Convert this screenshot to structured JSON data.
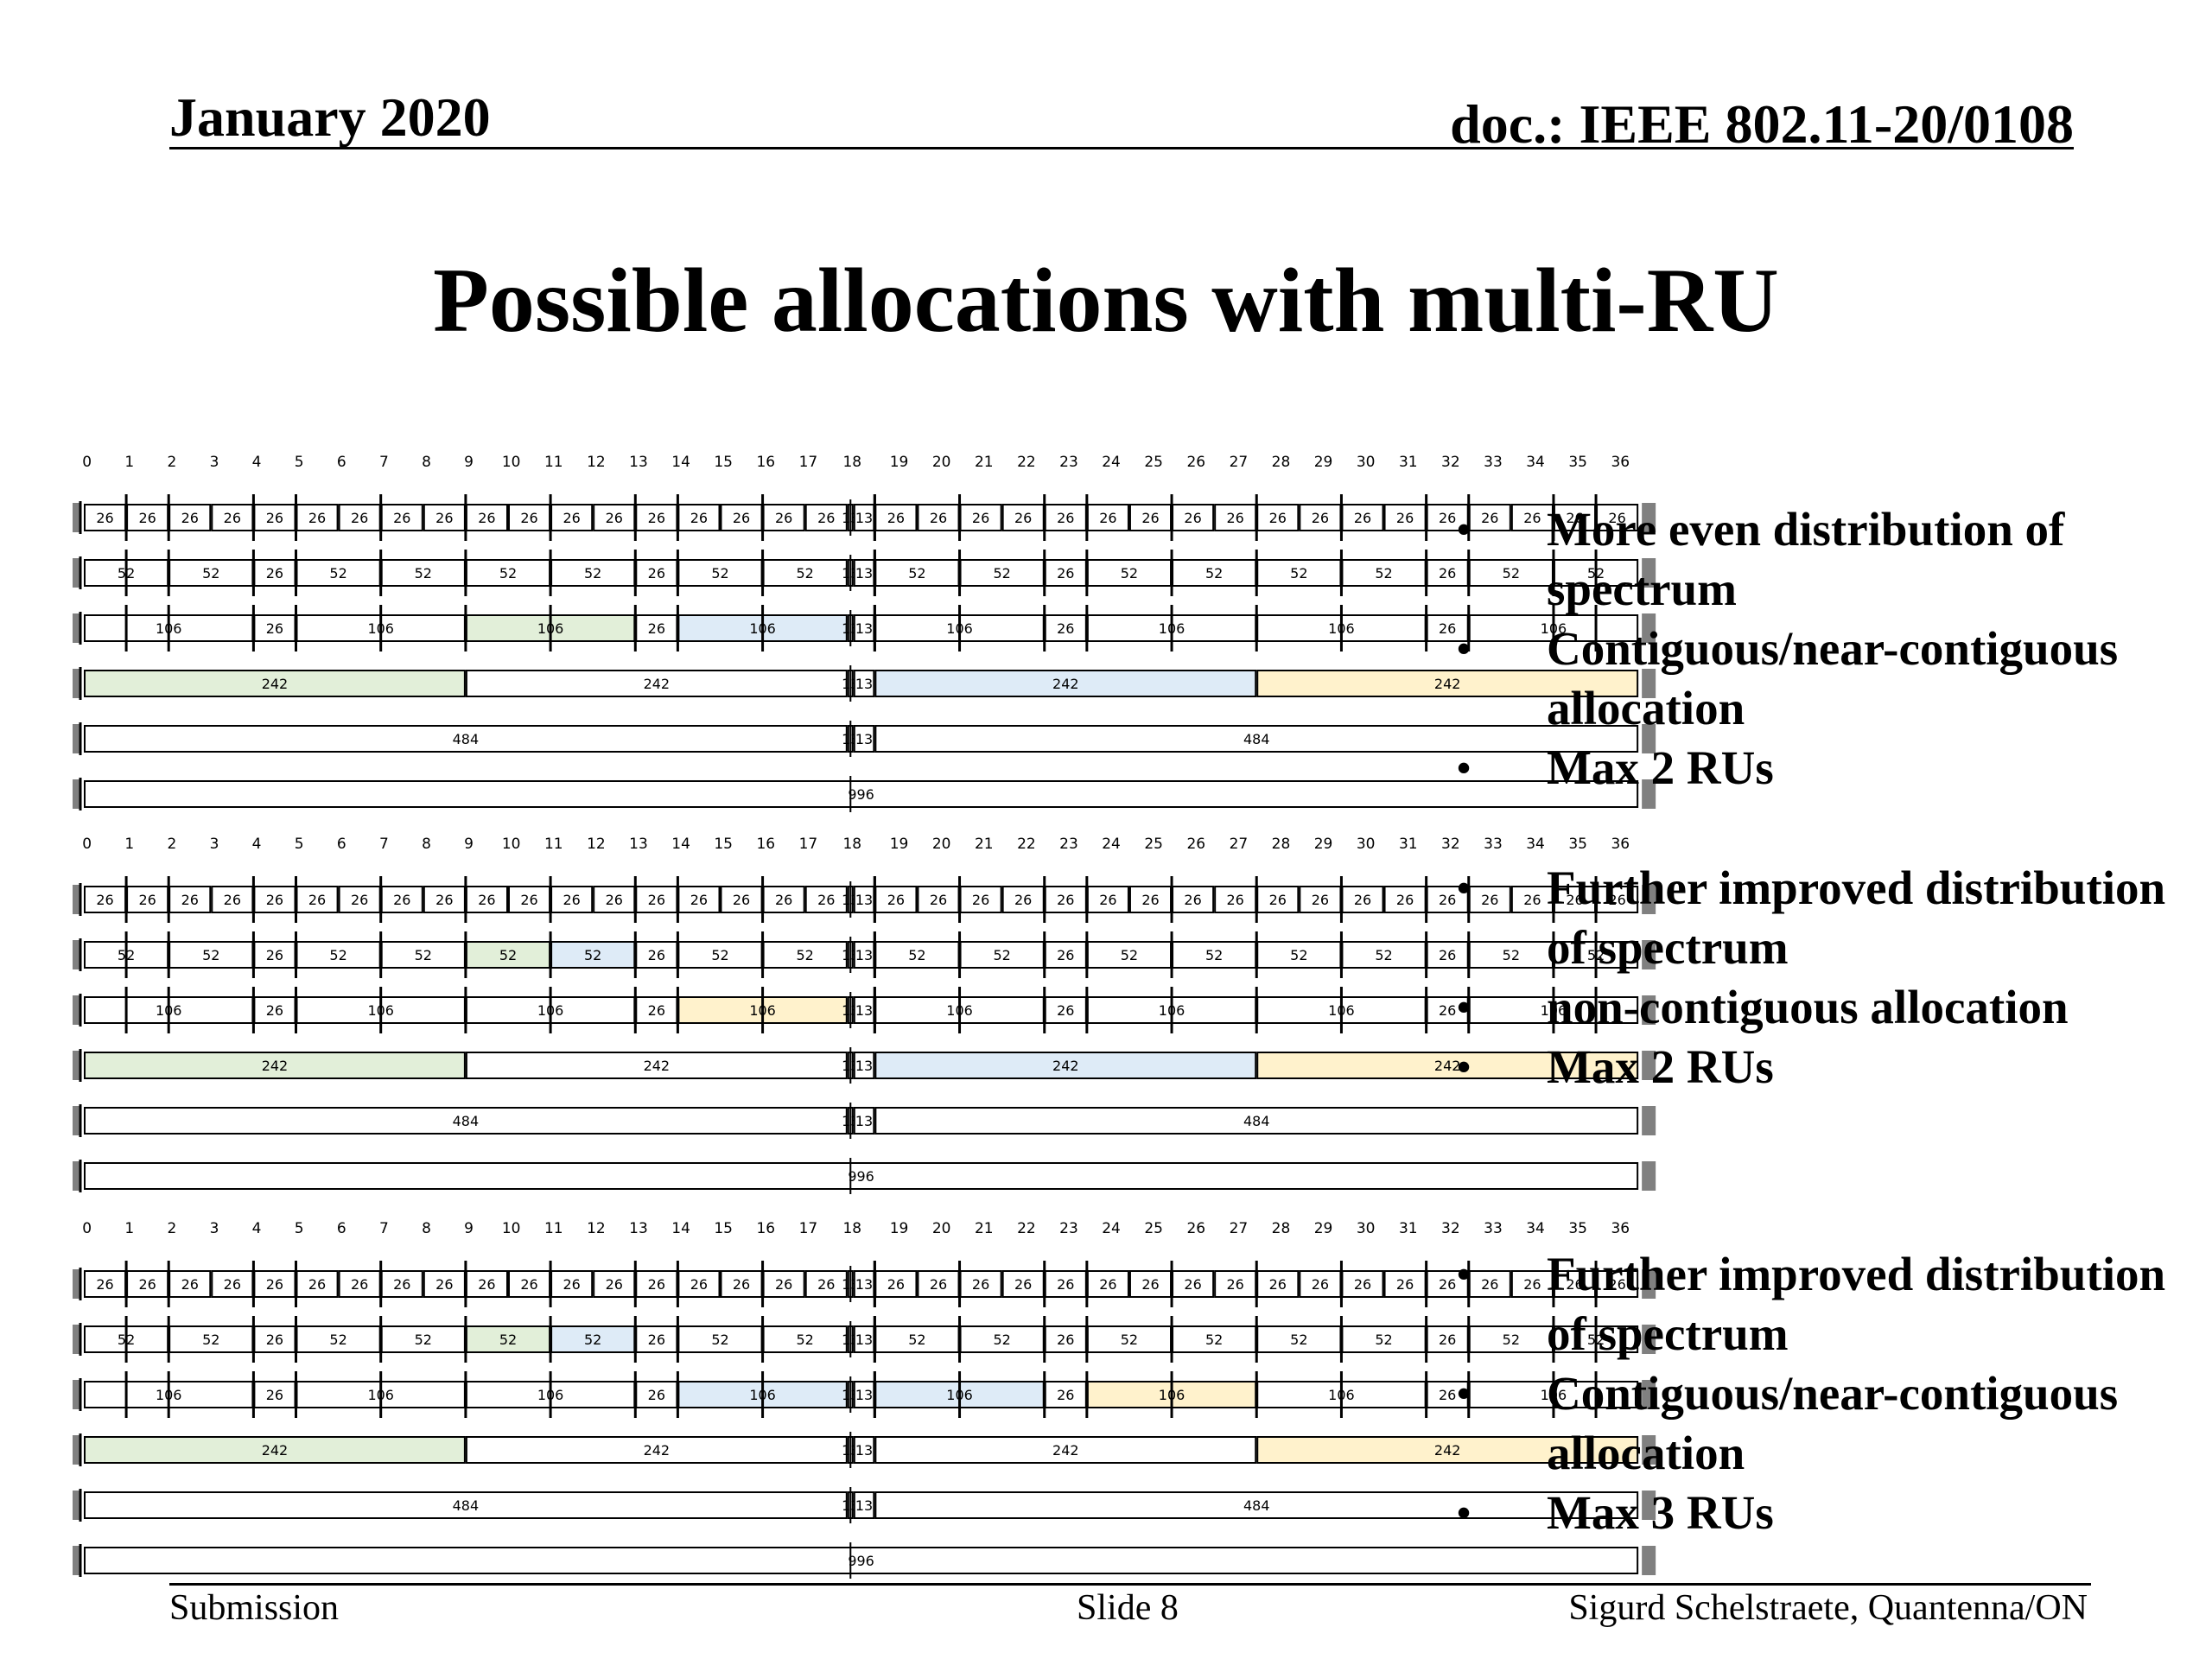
{
  "header": {
    "date": "January 2020",
    "doc": "doc.: IEEE 802.11-20/0108"
  },
  "title": "Possible allocations with multi-RU",
  "ru_labels": {
    "indices": [
      "0",
      "1",
      "2",
      "3",
      "4",
      "5",
      "6",
      "7",
      "8",
      "9",
      "10",
      "11",
      "12",
      "13",
      "14",
      "15",
      "16",
      "17",
      "18",
      "19",
      "20",
      "21",
      "22",
      "23",
      "24",
      "25",
      "26",
      "27",
      "28",
      "29",
      "30",
      "31",
      "32",
      "33",
      "34",
      "35",
      "36"
    ],
    "rows": [
      [
        "26",
        "26",
        "26",
        "26",
        "26",
        "26",
        "26",
        "26",
        "26",
        "26",
        "26",
        "26",
        "26",
        "26",
        "26",
        "26",
        "26",
        "26",
        "13",
        "13",
        "26",
        "26",
        "26",
        "26",
        "26",
        "26",
        "26",
        "26",
        "26",
        "26",
        "26",
        "26",
        "26",
        "26",
        "26",
        "26",
        "26",
        "26"
      ],
      [
        "52",
        "52",
        "26",
        "52",
        "52",
        "52",
        "52",
        "26",
        "52",
        "52",
        "13",
        "13",
        "52",
        "52",
        "26",
        "52",
        "52",
        "52",
        "52",
        "26",
        "52",
        "52"
      ],
      [
        "106",
        "26",
        "106",
        "106",
        "26",
        "106",
        "13",
        "13",
        "106",
        "26",
        "106",
        "106",
        "26",
        "106"
      ],
      [
        "242",
        "242",
        "13",
        "13",
        "242",
        "242"
      ],
      [
        "484",
        "13",
        "13",
        "484"
      ],
      [
        "996"
      ]
    ]
  },
  "colors": {
    "green": "#e2efd9",
    "blue": "#deebf7",
    "yellow": "#fff2cc",
    "end_block": "#808080"
  },
  "diagrams": [
    {
      "highlights": [
        {
          "row": 2,
          "index": 3,
          "color": "green"
        },
        {
          "row": 2,
          "index": 5,
          "color": "blue"
        },
        {
          "row": 3,
          "index": 0,
          "color": "green"
        },
        {
          "row": 3,
          "index": 4,
          "color": "blue"
        },
        {
          "row": 3,
          "index": 5,
          "color": "yellow"
        }
      ]
    },
    {
      "highlights": [
        {
          "row": 1,
          "index": 5,
          "color": "green"
        },
        {
          "row": 1,
          "index": 6,
          "color": "blue"
        },
        {
          "row": 2,
          "index": 5,
          "color": "yellow"
        },
        {
          "row": 3,
          "index": 0,
          "color": "green"
        },
        {
          "row": 3,
          "index": 4,
          "color": "blue"
        },
        {
          "row": 3,
          "index": 5,
          "color": "yellow"
        }
      ]
    },
    {
      "highlights": [
        {
          "row": 1,
          "index": 5,
          "color": "green"
        },
        {
          "row": 1,
          "index": 6,
          "color": "blue"
        },
        {
          "row": 2,
          "index": 5,
          "color": "blue"
        },
        {
          "row": 2,
          "index": 8,
          "color": "blue"
        },
        {
          "row": 2,
          "index": 10,
          "color": "yellow"
        },
        {
          "row": 3,
          "index": 0,
          "color": "green"
        },
        {
          "row": 3,
          "index": 5,
          "color": "yellow"
        }
      ]
    }
  ],
  "bullet_groups": [
    [
      "More even distribution of spectrum",
      "Contiguous/near-contiguous allocation",
      "Max 2 RUs"
    ],
    [
      "Further improved distribution of spectrum",
      "non-contiguous allocation",
      "Max 2 RUs"
    ],
    [
      "Further improved distribution of spectrum",
      "Contiguous/near-contiguous allocation",
      "Max 3 RUs"
    ]
  ],
  "bullet_char": "•",
  "footer": {
    "left": "Submission",
    "center": "Slide 8",
    "right": "Sigurd Schelstraete, Quantenna/ON"
  }
}
